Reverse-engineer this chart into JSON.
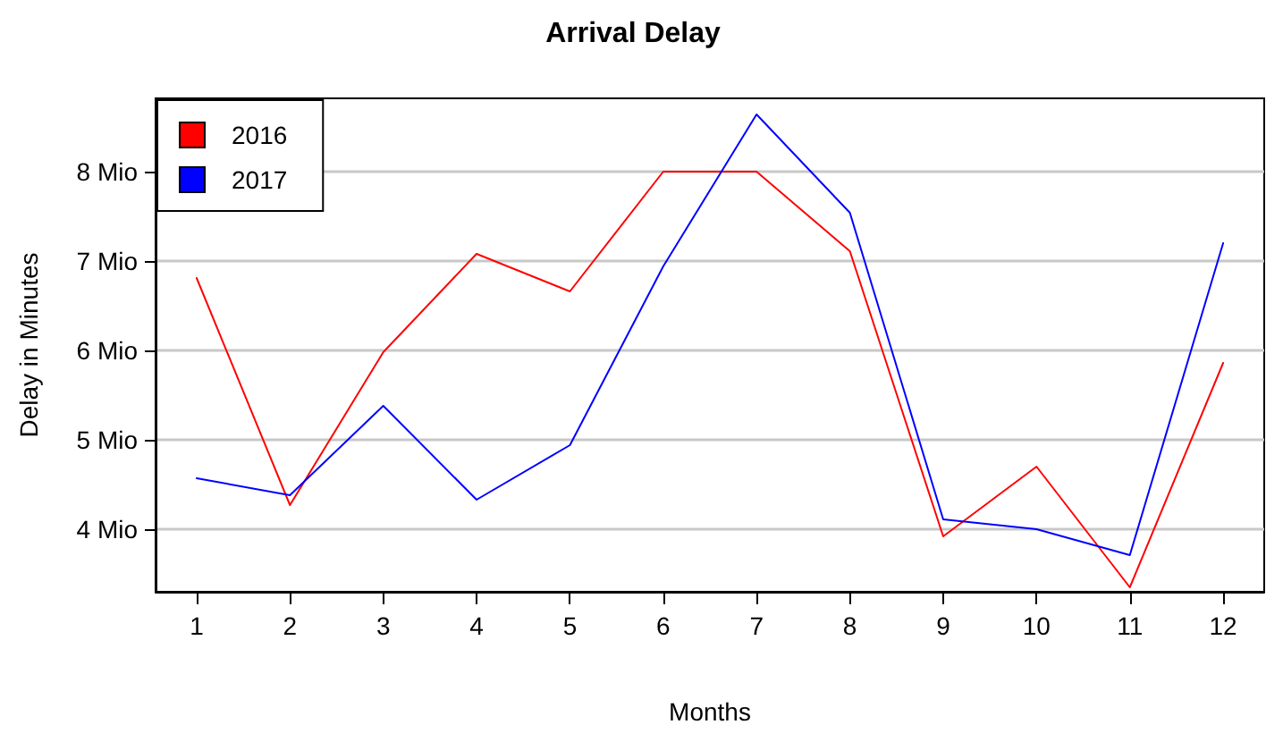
{
  "chart_data": {
    "type": "line",
    "title": "Arrival Delay",
    "xlabel": "Months",
    "ylabel": "Delay in Minutes",
    "x": [
      1,
      2,
      3,
      4,
      5,
      6,
      7,
      8,
      9,
      10,
      11,
      12
    ],
    "series": [
      {
        "name": "2016",
        "color": "#ff0000",
        "values": [
          6.81,
          4.27,
          5.98,
          7.08,
          6.66,
          8.0,
          8.0,
          7.11,
          3.92,
          4.7,
          3.35,
          5.86
        ]
      },
      {
        "name": "2017",
        "color": "#0000ff",
        "values": [
          4.57,
          4.38,
          5.38,
          4.33,
          4.94,
          6.94,
          8.64,
          7.54,
          4.11,
          4.0,
          3.71,
          7.2
        ]
      }
    ],
    "xlim": [
      0.56,
      12.44
    ],
    "xticks": [
      1,
      2,
      3,
      4,
      5,
      6,
      7,
      8,
      9,
      10,
      11,
      12
    ],
    "ylim": [
      3.3,
      8.82
    ],
    "yticks": [
      {
        "value": 4,
        "label": "4 Mio"
      },
      {
        "value": 5,
        "label": "5 Mio"
      },
      {
        "value": 6,
        "label": "6 Mio"
      },
      {
        "value": 7,
        "label": "7 Mio"
      },
      {
        "value": 8,
        "label": "8 Mio"
      }
    ],
    "grid": "y",
    "legend": "top left",
    "marker": "none",
    "line_style": "solid"
  }
}
